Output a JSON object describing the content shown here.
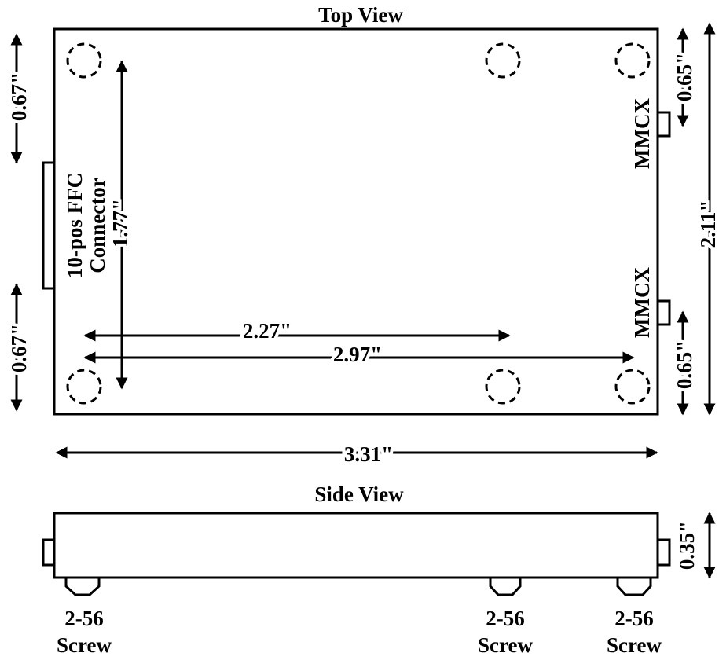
{
  "top_view": {
    "title": "Top View",
    "connector_label_line1": "10-pos FFC",
    "connector_label_line2": "Connector",
    "mmcx_top_label": "MMCX",
    "mmcx_bottom_label": "MMCX",
    "dims": {
      "left_top": "0.67\"",
      "left_bottom": "0.67\"",
      "vertical_holes": "1.77\"",
      "inner_width": "2.27\"",
      "hole_span": "2.97\"",
      "right_top": "0.65\"",
      "right_bottom": "0.65\"",
      "total_height": "2.11\"",
      "total_width": "3.31\""
    }
  },
  "side_view": {
    "title": "Side View",
    "height_dim": "0.35\"",
    "screws": [
      {
        "line1": "2-56",
        "line2": "Screw"
      },
      {
        "line1": "2-56",
        "line2": "Screw"
      },
      {
        "line1": "2-56",
        "line2": "Screw"
      }
    ]
  }
}
